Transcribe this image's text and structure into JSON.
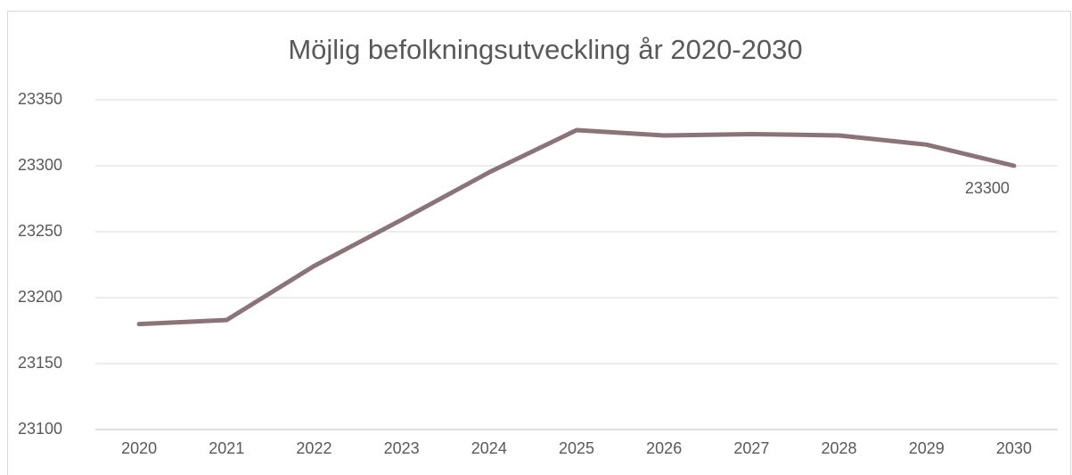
{
  "chart_data": {
    "type": "line",
    "title": "Möjlig befolkningsutveckling år 2020-2030",
    "categories": [
      "2020",
      "2021",
      "2022",
      "2023",
      "2024",
      "2025",
      "2026",
      "2027",
      "2028",
      "2029",
      "2030"
    ],
    "values": [
      23180,
      23183,
      23224,
      23259,
      23295,
      23327,
      23323,
      23324,
      23323,
      23316,
      23300
    ],
    "color": "#8b7479",
    "ylim": [
      23100,
      23350
    ],
    "yticks": [
      23100,
      23150,
      23200,
      23250,
      23300,
      23350
    ],
    "grid": true,
    "data_label_index": 10
  }
}
